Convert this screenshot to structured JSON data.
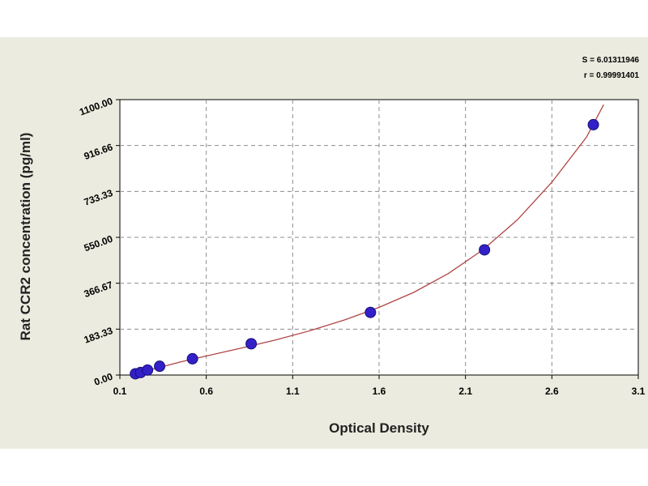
{
  "chart_data": {
    "type": "scatter",
    "xlabel": "Optical Density",
    "ylabel": "Rat CCR2 concentration (pg/ml)",
    "xlim": [
      0.1,
      3.1
    ],
    "ylim": [
      0,
      1100
    ],
    "x_ticks": [
      "0.1",
      "0.6",
      "1.1",
      "1.6",
      "2.1",
      "2.6",
      "3.1"
    ],
    "y_ticks": [
      "0.00",
      "183.33",
      "366.67",
      "550.00",
      "733.33",
      "916.66",
      "1100.00"
    ],
    "x_tick_values": [
      0.1,
      0.6,
      1.1,
      1.6,
      2.1,
      2.6,
      3.1
    ],
    "y_tick_values": [
      0,
      183.33,
      366.67,
      550,
      733.33,
      916.66,
      1100
    ],
    "grid": true,
    "series": [
      {
        "type": "scatter",
        "x": [
          0.19,
          0.22,
          0.26,
          0.33,
          0.52,
          0.86,
          1.55,
          2.21,
          2.84
        ],
        "y": [
          5,
          10,
          20,
          35,
          65,
          125,
          250,
          500,
          1000
        ]
      },
      {
        "type": "line",
        "x": [
          0.19,
          0.3,
          0.45,
          0.6,
          0.8,
          1.0,
          1.2,
          1.4,
          1.6,
          1.8,
          2.0,
          2.2,
          2.4,
          2.6,
          2.8,
          2.9
        ],
        "y": [
          4,
          25,
          52,
          76,
          107,
          140,
          177,
          220,
          270,
          330,
          405,
          500,
          620,
          770,
          950,
          1080
        ]
      }
    ],
    "stats": {
      "line1": "S = 6.01311946",
      "line2": "r = 0.99991401"
    },
    "colors": {
      "background": "#ebebdf",
      "plot_area": "#ffffff",
      "point_fill": "#3320c8",
      "point_stroke": "#17107a",
      "curve": "#b04545",
      "grid": "#8c8c8c"
    }
  }
}
